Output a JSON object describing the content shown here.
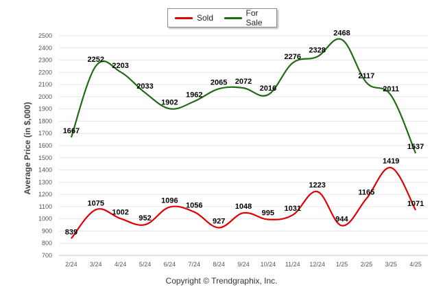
{
  "chart_data": {
    "type": "line",
    "categories": [
      "2/24",
      "3/24",
      "4/24",
      "5/24",
      "6/24",
      "7/24",
      "8/24",
      "9/24",
      "10/24",
      "11/24",
      "12/24",
      "1/25",
      "2/25",
      "3/25",
      "4/25"
    ],
    "series": [
      {
        "name": "Sold",
        "color": "#e00000",
        "values": [
          839,
          1075,
          1002,
          952,
          1096,
          1056,
          927,
          1048,
          995,
          1031,
          1223,
          944,
          1165,
          1419,
          1071
        ]
      },
      {
        "name": "For Sale",
        "color": "#1e6b12",
        "values": [
          1667,
          2252,
          2203,
          2033,
          1902,
          1962,
          2065,
          2072,
          2016,
          2276,
          2328,
          2468,
          2117,
          2011,
          1537
        ]
      }
    ],
    "ylabel": "Average Price (in $,000)",
    "ylim": [
      700,
      2500
    ],
    "yticks": [
      700,
      800,
      900,
      1000,
      1100,
      1200,
      1300,
      1400,
      1500,
      1600,
      1700,
      1800,
      1900,
      2000,
      2100,
      2200,
      2300,
      2400,
      2500
    ],
    "grid": true,
    "legend": "top-center"
  },
  "copyright": "Copyright © Trendgraphix, Inc."
}
